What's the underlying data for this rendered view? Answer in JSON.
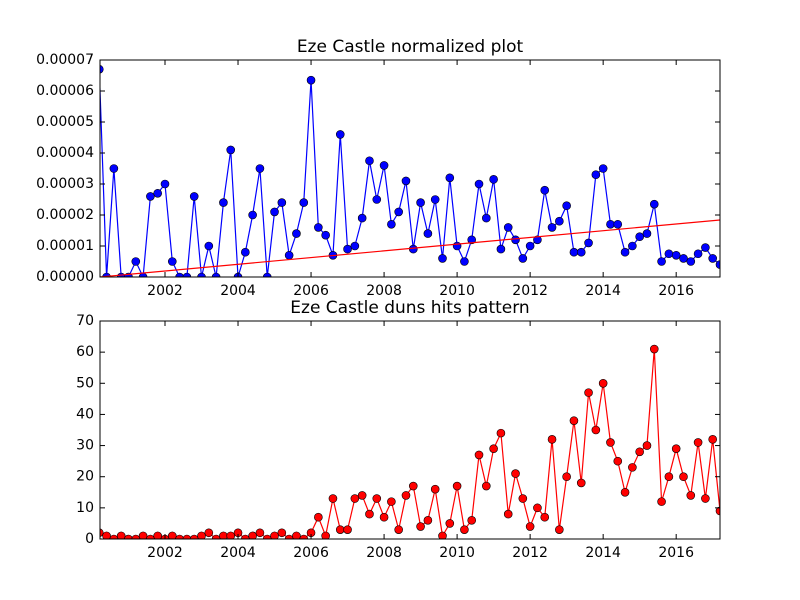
{
  "chart_data": [
    {
      "type": "line",
      "title": "Eze Castle normalized plot",
      "x": [
        2000.2,
        2000.4,
        2000.6,
        2000.8,
        2001.0,
        2001.2,
        2001.4,
        2001.6,
        2001.8,
        2002.0,
        2002.2,
        2002.4,
        2002.6,
        2002.8,
        2003.0,
        2003.2,
        2003.4,
        2003.6,
        2003.8,
        2004.0,
        2004.2,
        2004.4,
        2004.6,
        2004.8,
        2005.0,
        2005.2,
        2005.4,
        2005.6,
        2005.8,
        2006.0,
        2006.2,
        2006.4,
        2006.6,
        2006.8,
        2007.0,
        2007.2,
        2007.4,
        2007.6,
        2007.8,
        2008.0,
        2008.2,
        2008.4,
        2008.6,
        2008.8,
        2009.0,
        2009.2,
        2009.4,
        2009.6,
        2009.8,
        2010.0,
        2010.2,
        2010.4,
        2010.6,
        2010.8,
        2011.0,
        2011.2,
        2011.4,
        2011.6,
        2011.8,
        2012.0,
        2012.2,
        2012.4,
        2012.6,
        2012.8,
        2013.0,
        2013.2,
        2013.4,
        2013.6,
        2013.8,
        2014.0,
        2014.2,
        2014.4,
        2014.6,
        2014.8,
        2015.0,
        2015.2,
        2015.4,
        2015.6,
        2015.8,
        2016.0,
        2016.2,
        2016.4,
        2016.6,
        2016.8,
        2017.0,
        2017.2
      ],
      "series": [
        {
          "color": "#0000ff",
          "markers": true,
          "values": [
            6.7e-05,
            0,
            3.5e-05,
            0,
            0,
            5e-06,
            0,
            2.6e-05,
            2.7e-05,
            3e-05,
            5e-06,
            0,
            0,
            2.6e-05,
            0,
            1e-05,
            0,
            2.4e-05,
            4.1e-05,
            0,
            8e-06,
            2e-05,
            3.5e-05,
            0,
            2.1e-05,
            2.4e-05,
            7e-06,
            1.4e-05,
            2.4e-05,
            6.35e-05,
            1.6e-05,
            1.35e-05,
            7e-06,
            4.6e-05,
            9e-06,
            1e-05,
            1.9e-05,
            3.75e-05,
            2.5e-05,
            3.6e-05,
            1.7e-05,
            2.1e-05,
            3.1e-05,
            9e-06,
            2.4e-05,
            1.4e-05,
            2.5e-05,
            6e-06,
            3.2e-05,
            1e-05,
            5e-06,
            1.2e-05,
            3e-05,
            1.9e-05,
            3.15e-05,
            9e-06,
            1.6e-05,
            1.2e-05,
            6e-06,
            1e-05,
            1.2e-05,
            2.8e-05,
            1.6e-05,
            1.8e-05,
            2.3e-05,
            8e-06,
            8e-06,
            1.1e-05,
            3.3e-05,
            3.5e-05,
            1.7e-05,
            1.7e-05,
            8e-06,
            1e-05,
            1.3e-05,
            1.4e-05,
            2.35e-05,
            5e-06,
            7.5e-06,
            7e-06,
            6e-06,
            5e-06,
            7.5e-06,
            9.5e-06,
            6e-06,
            4e-06
          ]
        },
        {
          "color": "#ff0000",
          "markers": false,
          "x": [
            2000.22,
            2017.2
          ],
          "values": [
            0,
            1.84e-05
          ]
        }
      ],
      "xlim": [
        2000.22,
        2017.2
      ],
      "xticks": [
        2002,
        2004,
        2006,
        2008,
        2010,
        2012,
        2014,
        2016
      ],
      "ylim": [
        0,
        7e-05
      ],
      "yticks": [
        {
          "value": 0,
          "label": "0.00000"
        },
        {
          "value": 1e-05,
          "label": "0.00001"
        },
        {
          "value": 2e-05,
          "label": "0.00002"
        },
        {
          "value": 3e-05,
          "label": "0.00003"
        },
        {
          "value": 4e-05,
          "label": "0.00004"
        },
        {
          "value": 5e-05,
          "label": "0.00005"
        },
        {
          "value": 6e-05,
          "label": "0.00006"
        },
        {
          "value": 7e-05,
          "label": "0.00007"
        }
      ],
      "grid": false
    },
    {
      "type": "line",
      "title": "Eze Castle duns hits pattern",
      "x": [
        2000.2,
        2000.4,
        2000.6,
        2000.8,
        2001.0,
        2001.2,
        2001.4,
        2001.6,
        2001.8,
        2002.0,
        2002.2,
        2002.4,
        2002.6,
        2002.8,
        2003.0,
        2003.2,
        2003.4,
        2003.6,
        2003.8,
        2004.0,
        2004.2,
        2004.4,
        2004.6,
        2004.8,
        2005.0,
        2005.2,
        2005.4,
        2005.6,
        2005.8,
        2006.0,
        2006.2,
        2006.4,
        2006.6,
        2006.8,
        2007.0,
        2007.2,
        2007.4,
        2007.6,
        2007.8,
        2008.0,
        2008.2,
        2008.4,
        2008.6,
        2008.8,
        2009.0,
        2009.2,
        2009.4,
        2009.6,
        2009.8,
        2010.0,
        2010.2,
        2010.4,
        2010.6,
        2010.8,
        2011.0,
        2011.2,
        2011.4,
        2011.6,
        2011.8,
        2012.0,
        2012.2,
        2012.4,
        2012.6,
        2012.8,
        2013.0,
        2013.2,
        2013.4,
        2013.6,
        2013.8,
        2014.0,
        2014.2,
        2014.4,
        2014.6,
        2014.8,
        2015.0,
        2015.2,
        2015.4,
        2015.6,
        2015.8,
        2016.0,
        2016.2,
        2016.4,
        2016.6,
        2016.8,
        2017.0,
        2017.2
      ],
      "series": [
        {
          "color": "#ff0000",
          "markers": true,
          "values": [
            2,
            1,
            0,
            1,
            0,
            0,
            1,
            0,
            1,
            0,
            1,
            0,
            0,
            0,
            1,
            2,
            0,
            1,
            1,
            2,
            0,
            1,
            2,
            0,
            1,
            2,
            0,
            1,
            0,
            2,
            7,
            1,
            13,
            3,
            3,
            13,
            14,
            8,
            13,
            7,
            12,
            3,
            14,
            17,
            4,
            6,
            16,
            1,
            5,
            17,
            3,
            6,
            27,
            17,
            29,
            34,
            8,
            21,
            13,
            4,
            10,
            7,
            32,
            3,
            20,
            38,
            18,
            47,
            35,
            50,
            31,
            25,
            15,
            23,
            28,
            30,
            61,
            12,
            20,
            29,
            20,
            14,
            31,
            13,
            32,
            9
          ]
        }
      ],
      "xlim": [
        2000.22,
        2017.2
      ],
      "xticks": [
        2002,
        2004,
        2006,
        2008,
        2010,
        2012,
        2014,
        2016
      ],
      "ylim": [
        0,
        70
      ],
      "yticks": [
        0,
        10,
        20,
        30,
        40,
        50,
        60,
        70
      ],
      "grid": false
    }
  ]
}
